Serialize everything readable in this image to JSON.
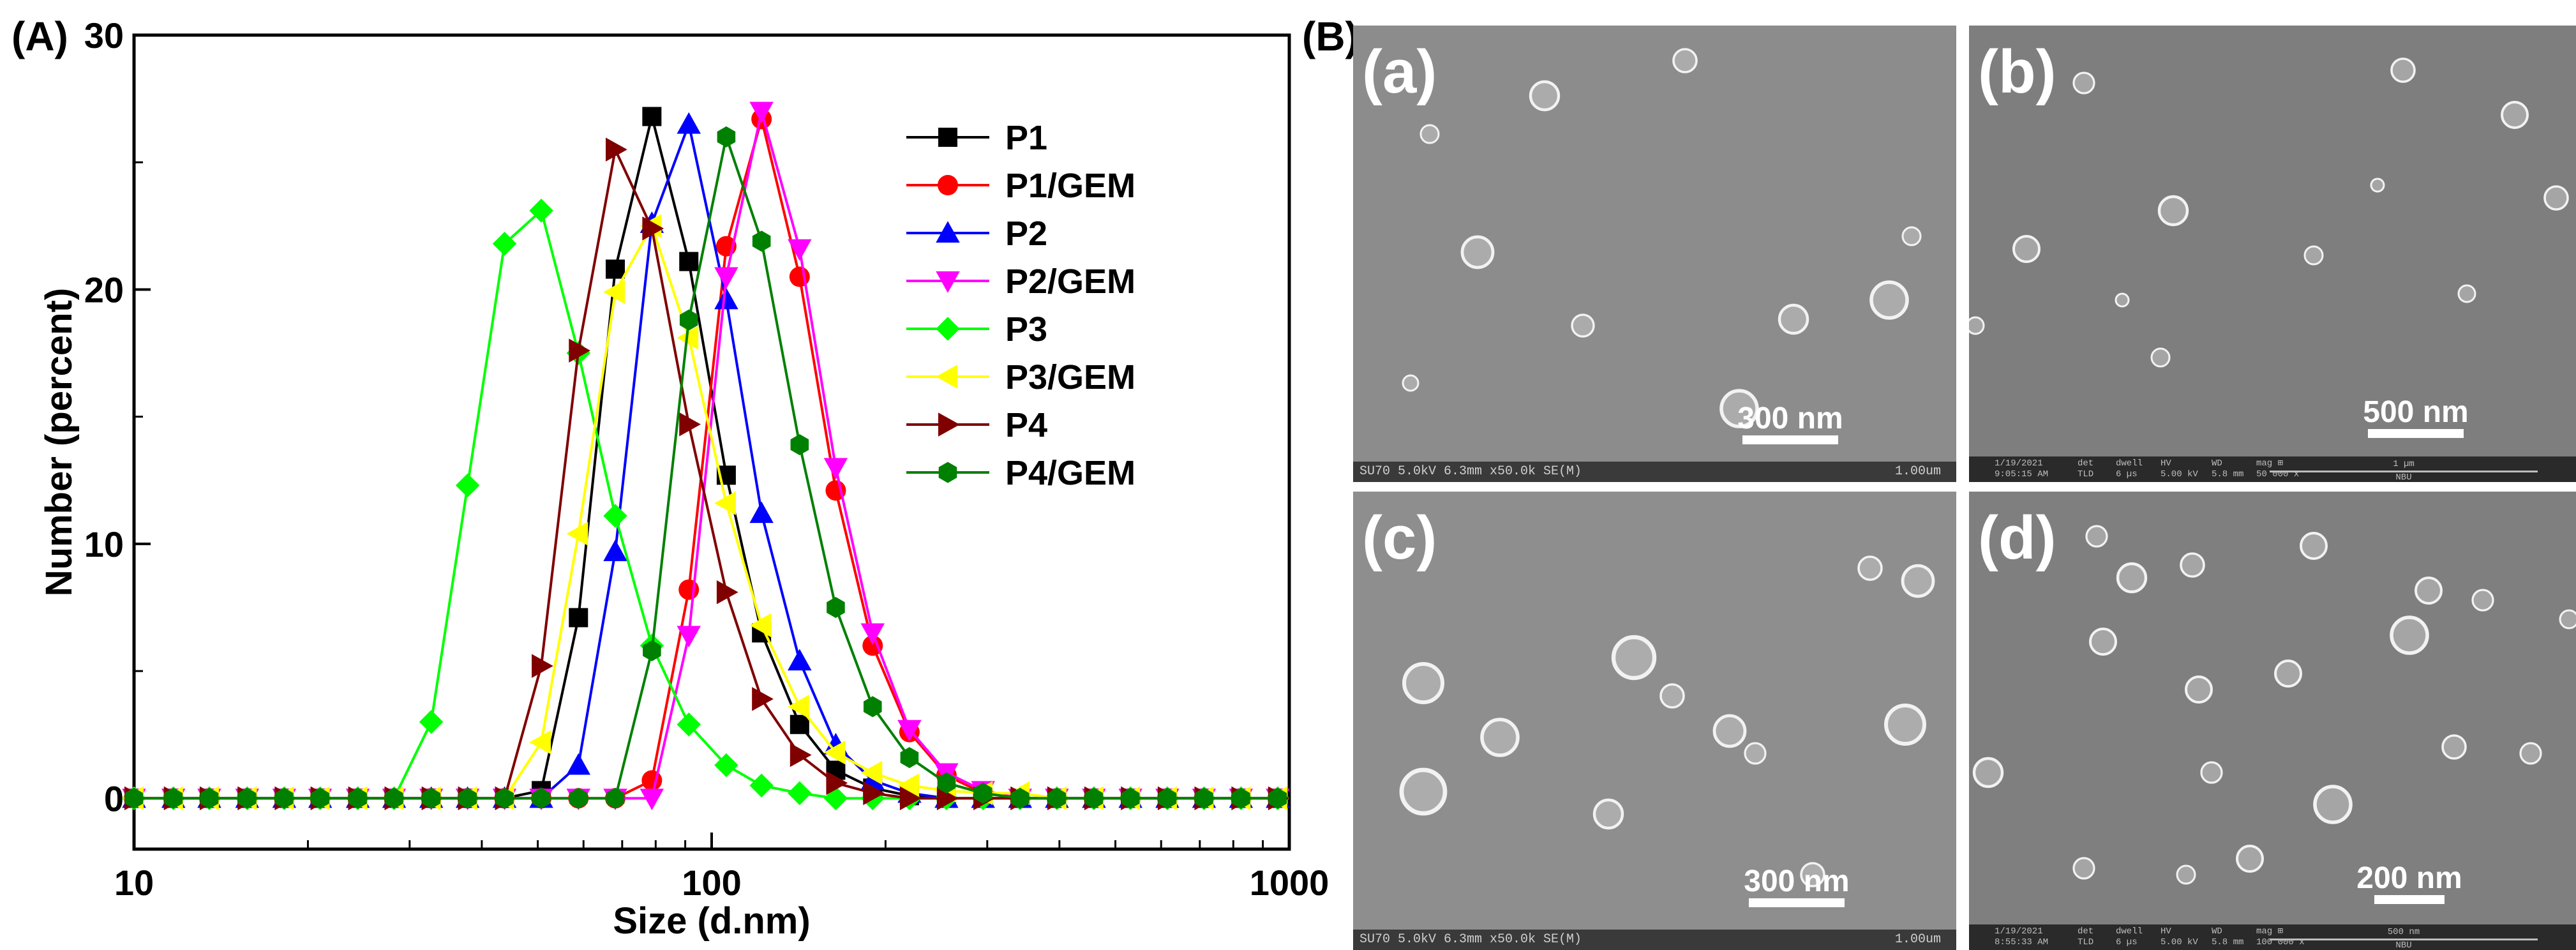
{
  "panel_labels": {
    "chart": "(A)",
    "sem": "(B)"
  },
  "chart_data": {
    "type": "line",
    "x_scale": "log",
    "xlabel": "Size (d.nm)",
    "ylabel": "Number (percent)",
    "xlim": [
      10,
      1000
    ],
    "ylim": [
      -2,
      30
    ],
    "xticks": [
      10,
      100,
      1000
    ],
    "xtick_labels": [
      "10",
      "100",
      "1000"
    ],
    "yticks": [
      0,
      10,
      20,
      30
    ],
    "ytick_labels": [
      "0",
      "10",
      "20",
      "30"
    ],
    "grid": false,
    "legend_position": "top-right",
    "x": [
      10,
      11.7,
      13.5,
      15.7,
      18.2,
      21.0,
      24.4,
      28.2,
      32.7,
      37.8,
      43.8,
      50.7,
      58.8,
      68.1,
      78.8,
      91.3,
      106,
      122,
      142,
      164,
      190,
      220,
      255,
      295,
      342,
      396,
      459,
      531,
      615,
      712,
      825,
      955
    ],
    "series": [
      {
        "name": "P1",
        "color": "#000000",
        "marker": "square",
        "values": [
          0,
          0,
          0,
          0,
          0,
          0,
          0,
          0,
          0,
          0,
          0,
          0.3,
          7.1,
          20.8,
          26.8,
          21.1,
          12.7,
          6.5,
          2.9,
          1.1,
          0.4,
          0.1,
          0,
          0,
          0,
          0,
          0,
          0,
          0,
          0,
          0,
          0
        ]
      },
      {
        "name": "P1/GEM",
        "color": "#ff0000",
        "marker": "circle",
        "values": [
          0,
          0,
          0,
          0,
          0,
          0,
          0,
          0,
          0,
          0,
          0,
          0,
          0,
          0,
          0.7,
          8.2,
          21.7,
          26.7,
          20.5,
          12.1,
          6.0,
          2.6,
          0.9,
          0.2,
          0,
          0,
          0,
          0,
          0,
          0,
          0,
          0
        ]
      },
      {
        "name": "P2",
        "color": "#0000ff",
        "marker": "triangle-up",
        "values": [
          0,
          0,
          0,
          0,
          0,
          0,
          0,
          0,
          0,
          0,
          0,
          0,
          1.3,
          9.7,
          22.6,
          26.5,
          19.6,
          11.2,
          5.4,
          2.1,
          0.7,
          0.2,
          0,
          0,
          0,
          0,
          0,
          0,
          0,
          0,
          0,
          0
        ]
      },
      {
        "name": "P2/GEM",
        "color": "#ff00ff",
        "marker": "triangle-down",
        "values": [
          0,
          0,
          0,
          0,
          0,
          0,
          0,
          0,
          0,
          0,
          0,
          0,
          0,
          0,
          0,
          6.4,
          20.5,
          27.0,
          21.6,
          13.0,
          6.5,
          2.7,
          1.0,
          0.3,
          0,
          0,
          0,
          0,
          0,
          0,
          0,
          0
        ]
      },
      {
        "name": "P3",
        "color": "#00ff00",
        "marker": "diamond",
        "values": [
          0,
          0,
          0,
          0,
          0,
          0,
          0,
          0,
          3.0,
          12.3,
          21.8,
          23.1,
          17.5,
          11.1,
          6.0,
          2.9,
          1.3,
          0.5,
          0.2,
          0,
          0,
          0,
          0,
          0,
          0,
          0,
          0,
          0,
          0,
          0,
          0,
          0
        ]
      },
      {
        "name": "P3/GEM",
        "color": "#ffff00",
        "marker": "triangle-left",
        "values": [
          0,
          0,
          0,
          0,
          0,
          0,
          0,
          0,
          0,
          0,
          0,
          2.2,
          10.4,
          19.9,
          22.5,
          18.1,
          11.6,
          6.8,
          3.6,
          1.8,
          1.0,
          0.5,
          0.3,
          0.2,
          0.2,
          0,
          0,
          0,
          0,
          0,
          0,
          0
        ]
      },
      {
        "name": "P4",
        "color": "#800000",
        "marker": "triangle-right",
        "values": [
          0,
          0,
          0,
          0,
          0,
          0,
          0,
          0,
          0,
          0,
          0,
          5.2,
          17.6,
          25.5,
          22.4,
          14.7,
          8.1,
          3.9,
          1.7,
          0.6,
          0.2,
          0,
          0,
          0,
          0,
          0,
          0,
          0,
          0,
          0,
          0,
          0
        ]
      },
      {
        "name": "P4/GEM",
        "color": "#008000",
        "marker": "hexagon",
        "values": [
          0,
          0,
          0,
          0,
          0,
          0,
          0,
          0,
          0,
          0,
          0,
          0,
          0,
          0,
          5.8,
          18.8,
          26.0,
          21.9,
          13.9,
          7.5,
          3.6,
          1.6,
          0.6,
          0.2,
          0,
          0,
          0,
          0,
          0,
          0,
          0,
          0
        ]
      }
    ]
  },
  "sem_images": [
    {
      "letter": "(a)",
      "scale_label": "300 nm",
      "footer_left": "SU70 5.0kV 6.3mm x50.0k SE(M)",
      "footer_right": "1.00um"
    },
    {
      "letter": "(b)",
      "scale_label": "500 nm",
      "info": {
        "col1": [
          "1/19/2021",
          "9:05:15 AM"
        ],
        "col2": [
          "det",
          "TLD"
        ],
        "col3": [
          "dwell",
          "6 µs"
        ],
        "col4": [
          "HV",
          "5.00 kV"
        ],
        "col5": [
          "WD",
          "5.8 mm"
        ],
        "col6": [
          "mag ⊞",
          "50 000 x"
        ],
        "tiny_scale": "1 µm",
        "tiny_brand": "NBU"
      }
    },
    {
      "letter": "(c)",
      "scale_label": "300 nm",
      "footer_left": "SU70 5.0kV 6.3mm x50.0k SE(M)",
      "footer_right": "1.00um"
    },
    {
      "letter": "(d)",
      "scale_label": "200 nm",
      "info": {
        "col1": [
          "1/19/2021",
          "8:55:33 AM"
        ],
        "col2": [
          "det",
          "TLD"
        ],
        "col3": [
          "dwell",
          "6 µs"
        ],
        "col4": [
          "HV",
          "5.00 kV"
        ],
        "col5": [
          "WD",
          "5.8 mm"
        ],
        "col6": [
          "mag ⊞",
          "100 000 x"
        ],
        "tiny_scale": "500 nm",
        "tiny_brand": "NBU"
      }
    }
  ]
}
